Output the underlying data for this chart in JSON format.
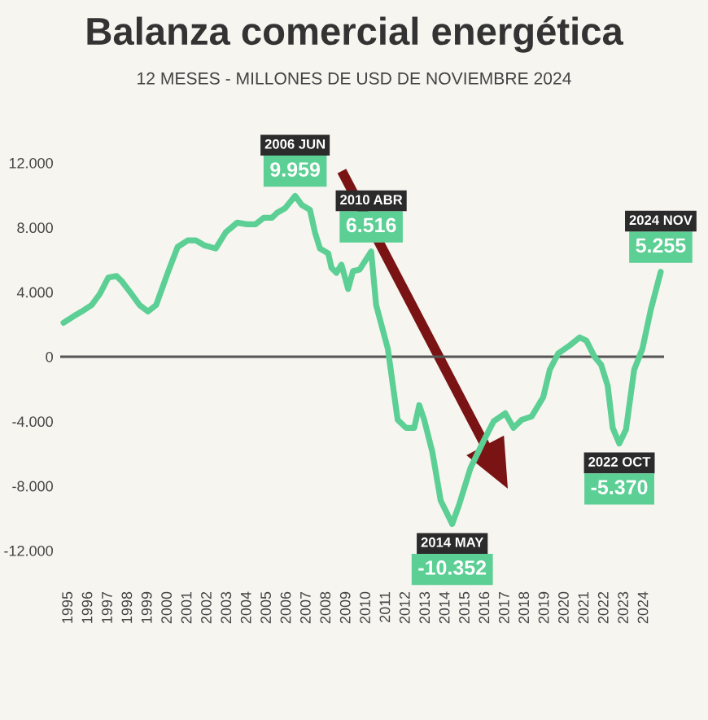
{
  "chart_data": {
    "type": "line",
    "title": "Balanza comercial energética",
    "subtitle": "12 MESES - MILLONES DE USD DE NOVIEMBRE 2024",
    "x": [
      "1994-10",
      "1995-04",
      "1995-09",
      "1996-03",
      "1996-08",
      "1997-01",
      "1997-06",
      "1997-09",
      "1998-03",
      "1998-08",
      "1999-01",
      "1999-06",
      "2000-01",
      "2000-07",
      "2001-01",
      "2001-06",
      "2001-11",
      "2002-06",
      "2002-12",
      "2003-07",
      "2004-01",
      "2004-06",
      "2004-11",
      "2005-04",
      "2005-07",
      "2005-12",
      "2006-06",
      "2006-10",
      "2007-03",
      "2007-06",
      "2007-09",
      "2008-02",
      "2008-04",
      "2008-07",
      "2008-10",
      "2009-02",
      "2009-05",
      "2009-09",
      "2010-04",
      "2010-07",
      "2011-02",
      "2011-08",
      "2012-01",
      "2012-06",
      "2012-09",
      "2012-12",
      "2013-05",
      "2013-10",
      "2014-05",
      "2014-09",
      "2015-04",
      "2015-12",
      "2016-06",
      "2017-01",
      "2017-06",
      "2017-11",
      "2018-05",
      "2018-12",
      "2019-04",
      "2019-09",
      "2020-04",
      "2020-10",
      "2021-02",
      "2021-07",
      "2021-11",
      "2022-03",
      "2022-06",
      "2022-10",
      "2023-02",
      "2023-07",
      "2023-12",
      "2024-05",
      "2024-11"
    ],
    "series": [
      {
        "color": "#5ccf94",
        "values": [
          2100,
          2500,
          2800,
          3200,
          3900,
          4900,
          5000,
          4700,
          3900,
          3200,
          2800,
          3200,
          5200,
          6800,
          7200,
          7200,
          6900,
          6700,
          7700,
          8300,
          8200,
          8200,
          8600,
          8600,
          8900,
          9200,
          9959,
          9400,
          9100,
          7700,
          6700,
          6400,
          5500,
          5200,
          5700,
          4200,
          5300,
          5400,
          6516,
          3200,
          500,
          -3900,
          -4400,
          -4400,
          -3000,
          -3900,
          -5900,
          -8900,
          -10352,
          -9200,
          -6900,
          -5200,
          -4000,
          -3500,
          -4400,
          -3900,
          -3700,
          -2500,
          -800,
          200,
          700,
          1200,
          1000,
          0,
          -500,
          -1800,
          -4400,
          -5370,
          -4500,
          -800,
          500,
          2900,
          5255
        ],
        "value_labels": [
          null,
          null,
          null,
          null,
          null,
          null,
          null,
          null,
          null,
          null,
          null,
          null,
          null,
          null,
          null,
          null,
          null,
          null,
          null,
          null,
          null,
          null,
          null,
          null,
          null,
          null,
          "9.959",
          null,
          null,
          null,
          null,
          null,
          null,
          null,
          null,
          null,
          null,
          null,
          "6.516",
          null,
          null,
          null,
          null,
          null,
          null,
          null,
          null,
          null,
          "-10.352",
          null,
          null,
          null,
          null,
          null,
          null,
          null,
          null,
          null,
          null,
          null,
          null,
          null,
          null,
          null,
          null,
          null,
          null,
          "-5.370",
          null,
          null,
          null,
          null,
          "5.255"
        ]
      }
    ],
    "xlim": [
      "1994-08",
      "2025-01"
    ],
    "xticks": [
      "1995",
      "1996",
      "1997",
      "1998",
      "1999",
      "2000",
      "2001",
      "2002",
      "2003",
      "2004",
      "2005",
      "2006",
      "2007",
      "2008",
      "2009",
      "2010",
      "2011",
      "2012",
      "2013",
      "2014",
      "2015",
      "2016",
      "2017",
      "2018",
      "2019",
      "2020",
      "2021",
      "2022",
      "2023",
      "2024"
    ],
    "ylim": [
      -12000,
      12000
    ],
    "yticks": [
      {
        "value": 12000,
        "label": "12.000"
      },
      {
        "value": 8000,
        "label": "8.000"
      },
      {
        "value": 4000,
        "label": "4.000"
      },
      0,
      {
        "value": -4000,
        "label": "-4.000"
      },
      {
        "value": -8000,
        "label": "-8.000"
      },
      {
        "value": -12000,
        "label": "-12.000"
      }
    ],
    "ref_lines": [
      {
        "axis": "y",
        "value": 0,
        "color": "#555555"
      }
    ],
    "annotations": [
      "2006 JUN",
      "2010 ABR",
      "2014 MAY",
      "2022 OCT",
      "2024 NOV"
    ]
  }
}
